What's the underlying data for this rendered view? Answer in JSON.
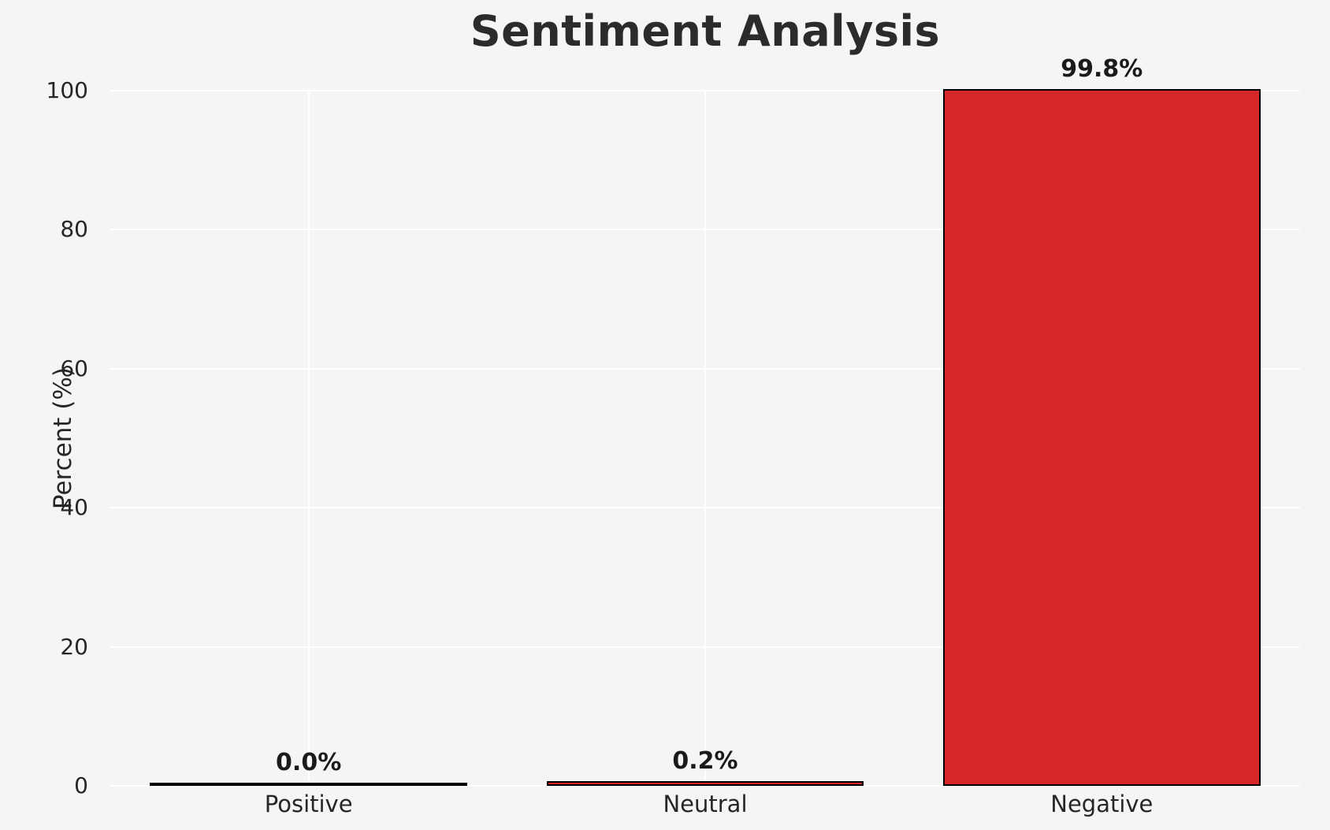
{
  "chart_data": {
    "type": "bar",
    "title": "Sentiment Analysis",
    "xlabel": "",
    "ylabel": "Percent (%)",
    "categories": [
      "Positive",
      "Neutral",
      "Negative"
    ],
    "values": [
      0.0,
      0.2,
      99.8
    ],
    "value_labels": [
      "0.0%",
      "0.2%",
      "99.8%"
    ],
    "ytick_labels": [
      "0",
      "20",
      "40",
      "60",
      "80",
      "100"
    ],
    "yticks": [
      0,
      20,
      40,
      60,
      80,
      100
    ],
    "ylim": [
      0,
      100
    ],
    "grid": true,
    "legend": "none",
    "bar_color": "#d62728",
    "bar_edge_color": "#000000",
    "background_color": "#f5f5f6",
    "gridline_color": "#ffffff",
    "text_color": "#262626"
  }
}
